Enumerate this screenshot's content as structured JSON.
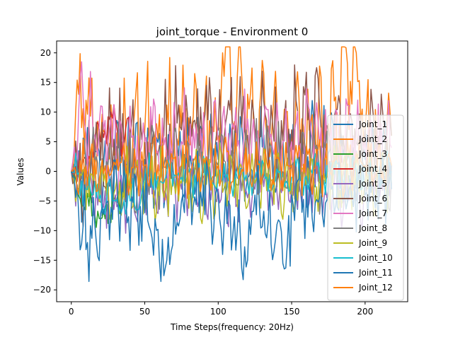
{
  "chart_data": {
    "type": "line",
    "title": "joint_torque - Environment 0",
    "xlabel": "Time Steps(frequency: 20Hz)",
    "ylabel": "Values",
    "xlim": [
      -10,
      229
    ],
    "ylim": [
      -22,
      22
    ],
    "xticks": [
      0,
      50,
      100,
      150,
      200
    ],
    "yticks": [
      -20,
      -15,
      -10,
      -5,
      0,
      5,
      10,
      15,
      20
    ],
    "grid": false,
    "legend_position": "right",
    "n_points": 219,
    "series": [
      {
        "name": "Joint_1",
        "color": "#1f77b4",
        "seed": 11,
        "amp": 7.0,
        "freq": 0.9,
        "bias": 2.0,
        "x": [
          0,
          25,
          50,
          75,
          100,
          125,
          150,
          175,
          200,
          218
        ],
        "y": [
          0,
          1,
          2,
          2,
          2,
          2,
          2,
          3,
          2,
          1
        ]
      },
      {
        "name": "Joint_2",
        "color": "#ff7f0e",
        "seed": 23,
        "amp": 9.0,
        "freq": 0.8,
        "bias": 6.0,
        "x": [
          0,
          5,
          10,
          25,
          50,
          75,
          100,
          103,
          125,
          150,
          175,
          194,
          200,
          218
        ],
        "y": [
          0,
          13,
          12,
          4,
          7,
          7,
          6,
          20,
          7,
          7,
          8,
          20,
          7,
          6
        ]
      },
      {
        "name": "Joint_3",
        "color": "#2ca02c",
        "seed": 37,
        "amp": 3.0,
        "freq": 0.7,
        "bias": -2.0,
        "x": [
          0,
          10,
          20,
          30,
          40
        ],
        "y": [
          0,
          -5,
          -8,
          -5,
          -2
        ]
      },
      {
        "name": "Joint_4",
        "color": "#d62728",
        "seed": 41,
        "amp": 3.0,
        "freq": 0.6,
        "bias": 5.0,
        "x": [
          0,
          10,
          20,
          27,
          35,
          40
        ],
        "y": [
          0,
          2,
          5,
          10,
          5,
          6
        ]
      },
      {
        "name": "Joint_5",
        "color": "#9467bd",
        "seed": 53,
        "amp": 5.0,
        "freq": 0.9,
        "bias": -3.0,
        "x": [
          0,
          25,
          50,
          75,
          100,
          125,
          150,
          175,
          200,
          218
        ],
        "y": [
          0,
          -4,
          -3,
          -3,
          -3,
          -3,
          -3,
          -3,
          -3,
          -2
        ]
      },
      {
        "name": "Joint_6",
        "color": "#8c564b",
        "seed": 67,
        "amp": 8.0,
        "freq": 0.85,
        "bias": 5.0,
        "x": [
          0,
          25,
          50,
          75,
          100,
          125,
          150,
          175,
          200,
          218
        ],
        "y": [
          0,
          5,
          6,
          7,
          7,
          7,
          7,
          7,
          7,
          6
        ]
      },
      {
        "name": "Joint_7",
        "color": "#e377c2",
        "seed": 71,
        "amp": 7.0,
        "freq": 0.9,
        "bias": 4.0,
        "x": [
          0,
          5,
          25,
          50,
          75,
          100,
          125,
          150,
          175,
          200,
          218
        ],
        "y": [
          0,
          10,
          5,
          5,
          5,
          5,
          5,
          5,
          6,
          5,
          4
        ]
      },
      {
        "name": "Joint_8",
        "color": "#7f7f7f",
        "seed": 83,
        "amp": 6.0,
        "freq": 0.8,
        "bias": 1.0,
        "x": [
          0,
          25,
          50,
          75,
          100,
          125,
          150,
          175,
          200,
          218
        ],
        "y": [
          0,
          1,
          1,
          1,
          1,
          1,
          1,
          1,
          1,
          1
        ]
      },
      {
        "name": "Joint_9",
        "color": "#bcbd22",
        "seed": 97,
        "amp": 5.0,
        "freq": 0.8,
        "bias": -2.0,
        "x": [
          0,
          25,
          50,
          75,
          100,
          125,
          150,
          175,
          200,
          218
        ],
        "y": [
          0,
          -2,
          -2,
          -2,
          -2,
          -2,
          -2,
          -2,
          -2,
          -2
        ]
      },
      {
        "name": "Joint_10",
        "color": "#17becf",
        "seed": 101,
        "amp": 3.0,
        "freq": 0.5,
        "bias": -3.0,
        "x": [
          0,
          10,
          20,
          30,
          35,
          40,
          50,
          75,
          100,
          125,
          150,
          175,
          200,
          218
        ],
        "y": [
          0,
          -3,
          -4,
          -5,
          -6,
          -5,
          -1,
          -1,
          -1,
          -1,
          -1,
          0,
          0,
          0
        ]
      },
      {
        "name": "Joint_11",
        "color": "#1f77b4",
        "seed": 113,
        "amp": 6.0,
        "freq": 0.9,
        "bias": -3.0,
        "x": [
          0,
          11,
          25,
          50,
          65,
          75,
          100,
          120,
          125,
          149,
          150,
          175,
          200,
          218
        ],
        "y": [
          0,
          -12,
          -5,
          -7,
          -15,
          -5,
          -4,
          -15,
          -4,
          -16,
          -4,
          -4,
          -4,
          -3
        ]
      },
      {
        "name": "Joint_12",
        "color": "#ff7f0e",
        "seed": 127,
        "amp": 4.0,
        "freq": 0.9,
        "bias": 1.0,
        "x": [
          0,
          25,
          50,
          75,
          100,
          125,
          150,
          175,
          200,
          218
        ],
        "y": [
          0,
          1,
          1,
          1,
          1,
          1,
          1,
          1,
          1,
          1
        ]
      }
    ]
  }
}
